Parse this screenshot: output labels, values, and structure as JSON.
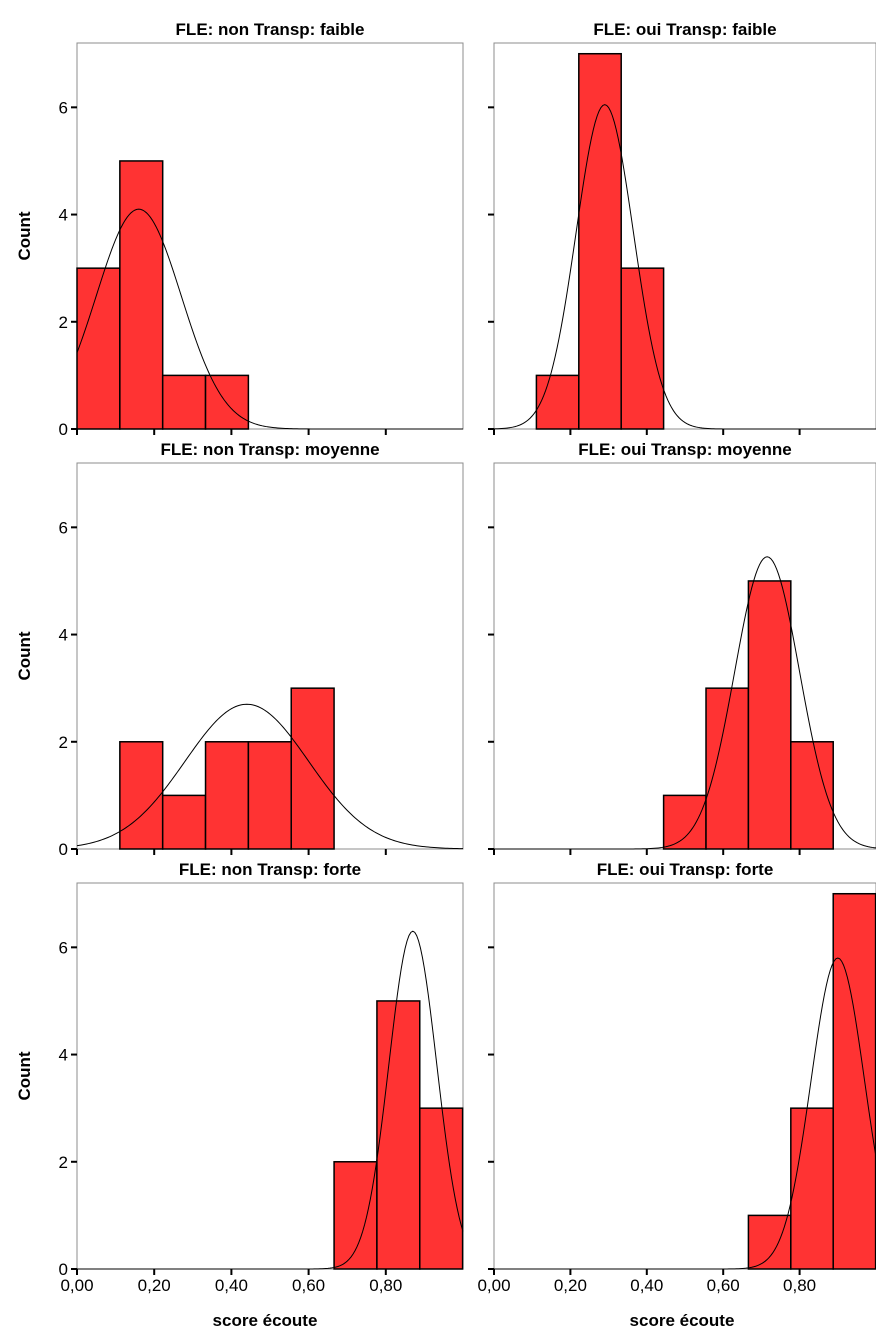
{
  "colors": {
    "bar_fill": "#ff3333",
    "bar_stroke": "#000000",
    "curve": "#000000",
    "frame": "#8c8c8c"
  },
  "axis": {
    "ylabel": "Count",
    "xlabel": "score écoute"
  },
  "chart_data": [
    {
      "type": "bar",
      "title": "FLE: non Transp: faible",
      "ylabel": "Count",
      "xlabel": "score écoute",
      "xlim": [
        0,
        1
      ],
      "ylim": [
        0,
        7.2
      ],
      "yticks": [
        0,
        2,
        4,
        6
      ],
      "xticks": [
        0.0,
        0.2,
        0.4,
        0.6,
        0.8
      ],
      "bin_width": 0.111,
      "bins": [
        0.0,
        0.111,
        0.222,
        0.333
      ],
      "values": [
        3,
        5,
        1,
        1
      ],
      "normal_curve": {
        "peak": 4.1,
        "mean": 0.16,
        "sd": 0.11
      }
    },
    {
      "type": "bar",
      "title": "FLE: oui Transp: faible",
      "ylabel": "Count",
      "xlabel": "score écoute",
      "xlim": [
        0,
        1
      ],
      "ylim": [
        0,
        7.2
      ],
      "yticks": [
        0,
        2,
        4,
        6
      ],
      "xticks": [
        0.0,
        0.2,
        0.4,
        0.6,
        0.8
      ],
      "bin_width": 0.111,
      "bins": [
        0.111,
        0.222,
        0.333
      ],
      "values": [
        1,
        7,
        3
      ],
      "normal_curve": {
        "peak": 6.05,
        "mean": 0.29,
        "sd": 0.075
      }
    },
    {
      "type": "bar",
      "title": "FLE: non Transp: moyenne",
      "ylabel": "Count",
      "xlabel": "score écoute",
      "xlim": [
        0,
        1
      ],
      "ylim": [
        0,
        7.2
      ],
      "yticks": [
        0,
        2,
        4,
        6
      ],
      "xticks": [
        0.0,
        0.2,
        0.4,
        0.6,
        0.8
      ],
      "bin_width": 0.111,
      "bins": [
        0.111,
        0.222,
        0.333,
        0.444,
        0.555
      ],
      "values": [
        2,
        1,
        2,
        2,
        3
      ],
      "normal_curve": {
        "peak": 2.7,
        "mean": 0.44,
        "sd": 0.16
      }
    },
    {
      "type": "bar",
      "title": "FLE: oui Transp: moyenne",
      "ylabel": "Count",
      "xlabel": "score écoute",
      "xlim": [
        0,
        1
      ],
      "ylim": [
        0,
        7.2
      ],
      "yticks": [
        0,
        2,
        4,
        6
      ],
      "xticks": [
        0.0,
        0.2,
        0.4,
        0.6,
        0.8
      ],
      "bin_width": 0.111,
      "bins": [
        0.444,
        0.555,
        0.666,
        0.777
      ],
      "values": [
        1,
        3,
        5,
        2
      ],
      "normal_curve": {
        "peak": 5.45,
        "mean": 0.715,
        "sd": 0.085
      }
    },
    {
      "type": "bar",
      "title": "FLE: non Transp: forte",
      "ylabel": "Count",
      "xlabel": "score écoute",
      "xlim": [
        0,
        1
      ],
      "ylim": [
        0,
        7.2
      ],
      "yticks": [
        0,
        2,
        4,
        6
      ],
      "xticks": [
        0.0,
        0.2,
        0.4,
        0.6,
        0.8
      ],
      "xtick_labels": [
        "0,00",
        "0,20",
        "0,40",
        "0,60",
        "0,80"
      ],
      "bin_width": 0.111,
      "bins": [
        0.666,
        0.777,
        0.888
      ],
      "values": [
        2,
        5,
        3
      ],
      "normal_curve": {
        "peak": 6.3,
        "mean": 0.87,
        "sd": 0.062
      }
    },
    {
      "type": "bar",
      "title": "FLE: oui Transp: forte",
      "ylabel": "Count",
      "xlabel": "score écoute",
      "xlim": [
        0,
        1
      ],
      "ylim": [
        0,
        7.2
      ],
      "yticks": [
        0,
        2,
        4,
        6
      ],
      "xticks": [
        0.0,
        0.2,
        0.4,
        0.6,
        0.8
      ],
      "xtick_labels": [
        "0,00",
        "0,20",
        "0,40",
        "0,60",
        "0,80"
      ],
      "bin_width": 0.111,
      "bins": [
        0.666,
        0.777,
        0.888
      ],
      "values": [
        1,
        3,
        7
      ],
      "normal_curve": {
        "peak": 5.8,
        "mean": 0.9,
        "sd": 0.07
      }
    }
  ]
}
